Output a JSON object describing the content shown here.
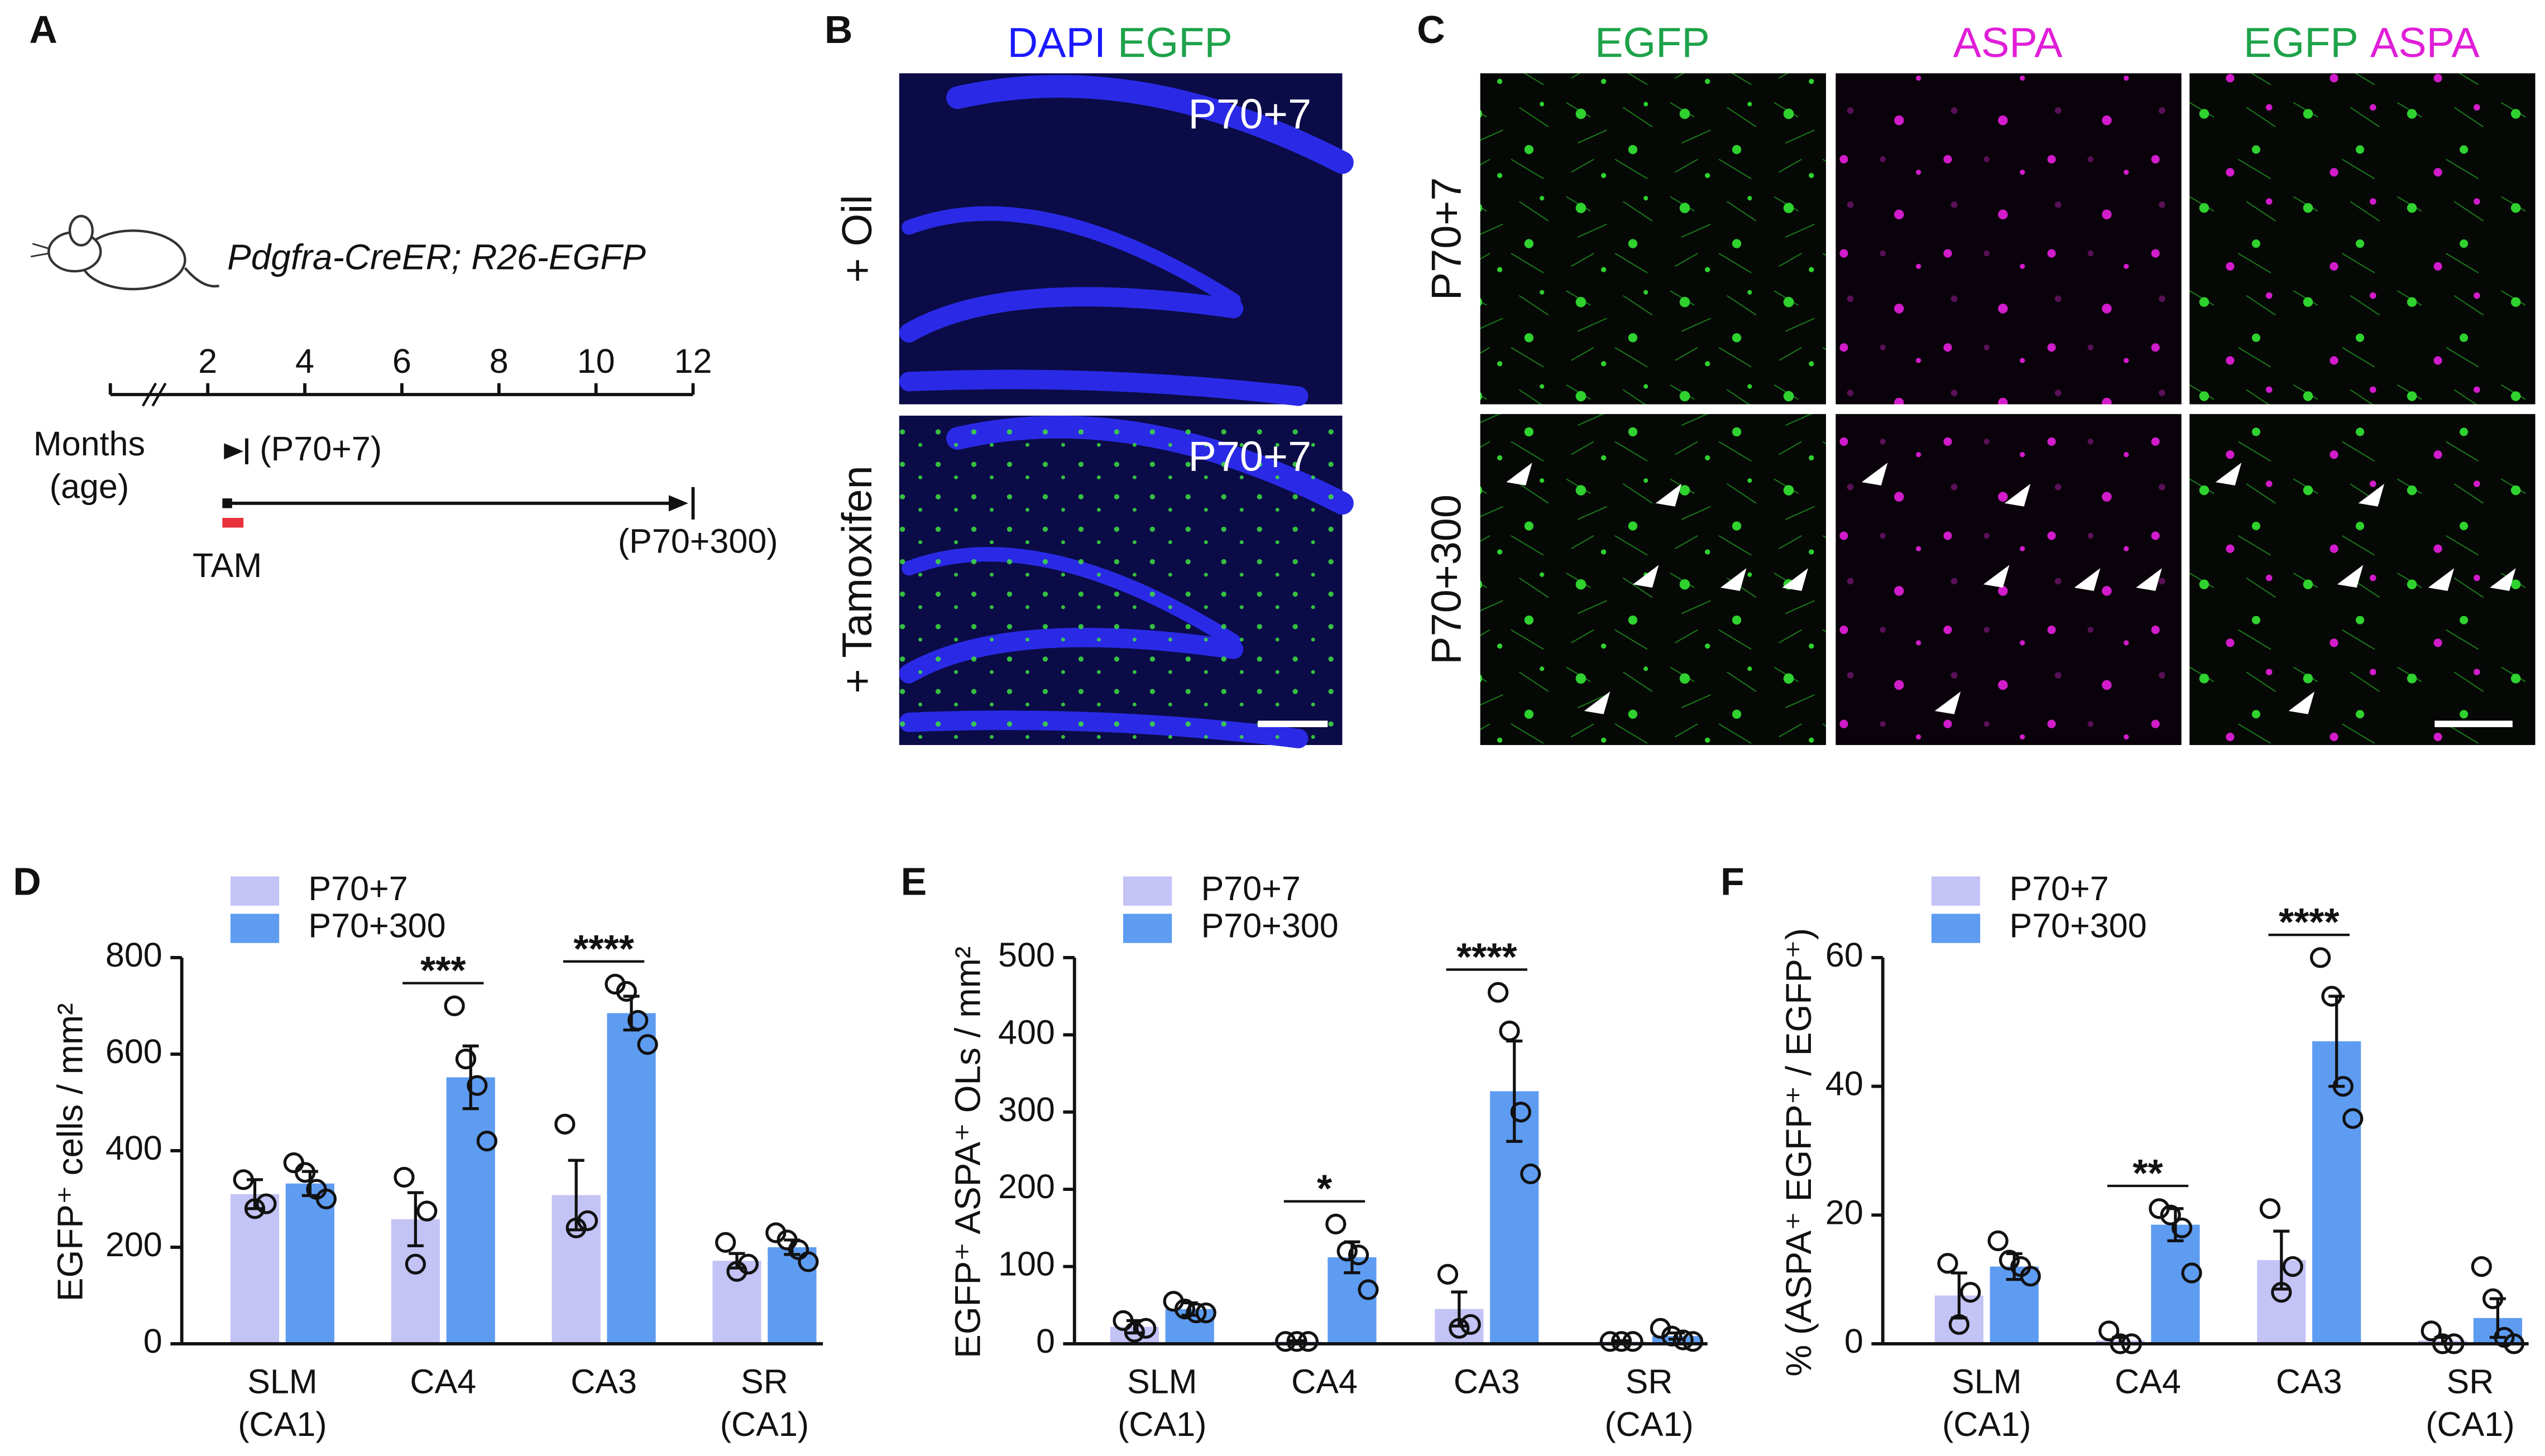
{
  "panel_a": {
    "label": "A",
    "genotype": "Pdgfra-CreER; R26-EGFP",
    "timeline_ticks": [
      2,
      4,
      6,
      8,
      10,
      12
    ],
    "axis_label": "Months\n(age)",
    "short_chase": "(P70+7)",
    "long_chase": "(P70+300)",
    "treatment": "TAM"
  },
  "panel_b": {
    "label": "B",
    "header": [
      "DAPI",
      "EGFP"
    ],
    "rows": [
      "+ Oil",
      "+ Tamoxifen"
    ],
    "image_labels": [
      "P70+7",
      "P70+7"
    ]
  },
  "panel_c": {
    "label": "C",
    "columns": [
      "EGFP",
      "ASPA"
    ],
    "merge_header": [
      "EGFP",
      "ASPA"
    ],
    "rows": [
      "P70+7",
      "P70+300"
    ]
  },
  "chart_data": [
    {
      "panel": "D",
      "type": "bar",
      "y_label": "EGFP⁺ cells / mm²",
      "categories": [
        "SLM\n(CA1)",
        "CA4",
        "CA3",
        "SR\n(CA1)"
      ],
      "ylim": [
        0,
        800
      ],
      "yticks": [
        0,
        200,
        400,
        600,
        800
      ],
      "series": [
        {
          "name": "P70+7",
          "color": "#c3c3f6",
          "values": [
            310,
            258,
            308,
            172
          ],
          "errors": [
            30,
            55,
            72,
            15
          ],
          "points": [
            [
              340,
              290,
              280
            ],
            [
              345,
              275,
              165
            ],
            [
              455,
              255,
              240
            ],
            [
              210,
              165,
              150
            ]
          ]
        },
        {
          "name": "P70+300",
          "color": "#5e9cf2",
          "values": [
            332,
            552,
            685,
            200
          ],
          "errors": [
            25,
            65,
            35,
            15
          ],
          "points": [
            [
              375,
              355,
              320,
              300
            ],
            [
              700,
              590,
              535,
              420
            ],
            [
              745,
              730,
              670,
              620
            ],
            [
              230,
              215,
              195,
              170
            ]
          ]
        }
      ],
      "significance": [
        null,
        "***",
        "****",
        null
      ]
    },
    {
      "panel": "E",
      "type": "bar",
      "y_label": "EGFP⁺ ASPA⁺ OLs / mm²",
      "categories": [
        "SLM\n(CA1)",
        "CA4",
        "CA3",
        "SR\n(CA1)"
      ],
      "ylim": [
        0,
        500
      ],
      "yticks": [
        0,
        100,
        200,
        300,
        400,
        500
      ],
      "series": [
        {
          "name": "P70+7",
          "color": "#c3c3f6",
          "values": [
            22,
            3,
            45,
            3
          ],
          "errors": [
            8,
            1,
            22,
            1
          ],
          "points": [
            [
              30,
              20,
              15
            ],
            [
              3,
              3,
              3
            ],
            [
              90,
              25,
              20
            ],
            [
              3,
              3,
              3
            ]
          ]
        },
        {
          "name": "P70+300",
          "color": "#5e9cf2",
          "values": [
            45,
            112,
            327,
            10
          ],
          "errors": [
            8,
            20,
            65,
            4
          ],
          "points": [
            [
              55,
              45,
              40,
              40
            ],
            [
              155,
              120,
              115,
              70
            ],
            [
              455,
              405,
              300,
              220
            ],
            [
              20,
              10,
              5,
              3
            ]
          ]
        }
      ],
      "significance": [
        null,
        "*",
        "****",
        null
      ]
    },
    {
      "panel": "F",
      "type": "bar",
      "y_label": "% (ASPA⁺ EGFP⁺ / EGFP⁺)",
      "categories": [
        "SLM\n(CA1)",
        "CA4",
        "CA3",
        "SR\n(CA1)"
      ],
      "ylim": [
        0,
        60
      ],
      "yticks": [
        0,
        20,
        40,
        60
      ],
      "series": [
        {
          "name": "P70+7",
          "color": "#c3c3f6",
          "values": [
            7.5,
            0.5,
            13,
            0.5
          ],
          "errors": [
            3.5,
            0.5,
            4.5,
            0.5
          ],
          "points": [
            [
              12.5,
              8,
              3
            ],
            [
              2,
              0,
              0
            ],
            [
              21,
              12,
              8
            ],
            [
              2,
              0,
              0
            ]
          ]
        },
        {
          "name": "P70+300",
          "color": "#5e9cf2",
          "values": [
            12,
            18.5,
            47,
            4
          ],
          "errors": [
            2,
            2.5,
            7,
            3
          ],
          "points": [
            [
              16,
              13,
              12,
              10.5
            ],
            [
              21,
              20,
              18,
              11
            ],
            [
              60,
              54,
              40,
              35
            ],
            [
              12,
              7,
              1,
              0
            ]
          ]
        }
      ],
      "significance": [
        null,
        "**",
        "****",
        null
      ]
    }
  ]
}
